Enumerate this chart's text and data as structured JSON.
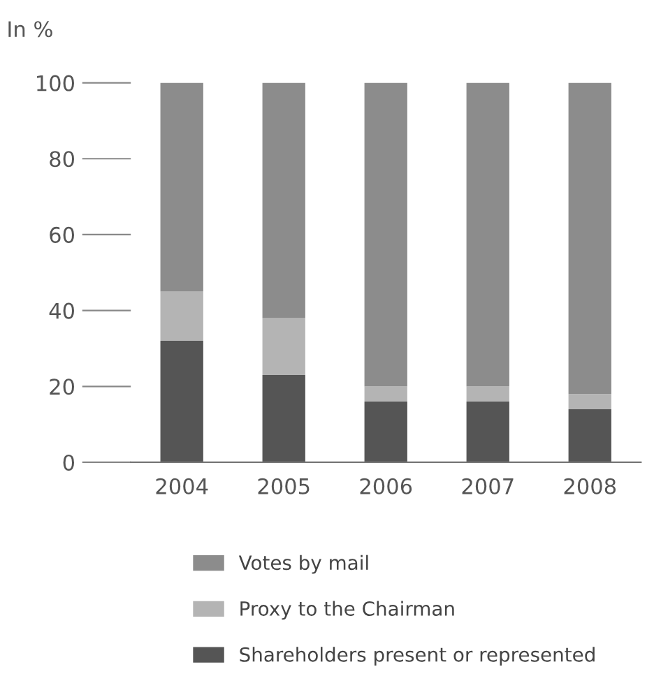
{
  "chart_data": {
    "type": "bar",
    "stacked": true,
    "ylabel": "In %",
    "categories": [
      "2004",
      "2005",
      "2006",
      "2007",
      "2008"
    ],
    "series": [
      {
        "name": "Shareholders present or represented",
        "color": "#555555",
        "values": [
          32,
          23,
          16,
          16,
          14
        ]
      },
      {
        "name": "Proxy to the Chairman",
        "color": "#b4b4b4",
        "values": [
          13,
          15,
          4,
          4,
          4
        ]
      },
      {
        "name": "Votes by mail",
        "color": "#8c8c8c",
        "values": [
          55,
          62,
          80,
          80,
          82
        ]
      }
    ],
    "ylim": [
      0,
      100
    ],
    "yticks": [
      0,
      20,
      40,
      60,
      80,
      100
    ],
    "grid": false,
    "legend": "bottom"
  }
}
